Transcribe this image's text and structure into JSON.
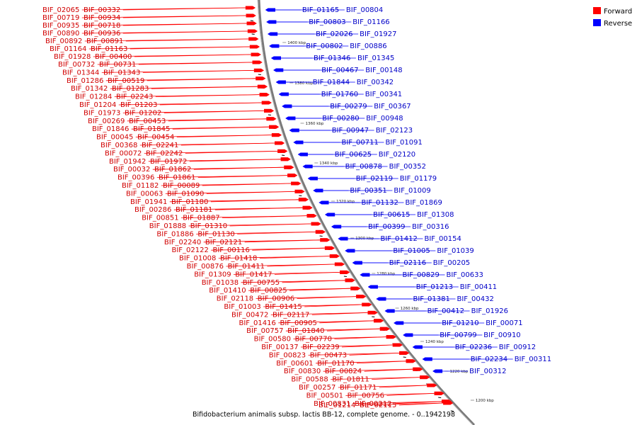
{
  "legend": [
    {
      "label": "Forward",
      "color": "#ff0000"
    },
    {
      "label": "Reverse",
      "color": "#0000ff"
    }
  ],
  "caption": "Bifidobacterium animalis subsp. lactis BB-12, complete genome. - 0..1942198",
  "scale_labels": [
    "1400 kbp",
    "1380 kbp",
    "1360 kbp",
    "1340 kbp",
    "1320 kbp",
    "1300 kbp",
    "1280 kbp",
    "1260 kbp",
    "1240 kbp",
    "1220 kbp",
    "1200 kbp"
  ],
  "forward_genes": [
    "BIF_02065",
    "BIF_00332",
    "BIF_00719",
    "BIF_00934",
    "BIF_00935",
    "BIF_00718",
    "BIF_00890",
    "BIF_00936",
    "BIF_00892",
    "BIF_00891",
    "BIF_01164",
    "BIF_01163",
    "BIF_01928",
    "BIF_00400",
    "BIF_00732",
    "BIF_00731",
    "BIF_01344",
    "BIF_01343",
    "BIF_01286",
    "BIF_00519",
    "BIF_01342",
    "BIF_01283",
    "BIF_01284",
    "BIF_02243",
    "BIF_01204",
    "BIF_01203",
    "BIF_01973",
    "BIF_01202",
    "BIF_00269",
    "BIF_00453",
    "BIF_01846",
    "BIF_01845",
    "BIF_00045",
    "BIF_00454",
    "BIF_00368",
    "BIF_02241",
    "BIF_00072",
    "BIF_02242",
    "BIF_01942",
    "BIF_01972",
    "BIF_00032",
    "BIF_01862",
    "BIF_00396",
    "BIF_01861",
    "BIF_01182",
    "BIF_00089",
    "BIF_00063",
    "BIF_01090",
    "BIF_01941",
    "BIF_01180",
    "BIF_00286",
    "BIF_01181",
    "BIF_00851",
    "BIF_01887",
    "BIF_01888",
    "BIF_01310",
    "BIF_01886",
    "BIF_01130",
    "BIF_02240",
    "BIF_02121",
    "BIF_02122",
    "BIF_00116",
    "BIF_01008",
    "BIF_01418",
    "BIF_00876",
    "BIF_01411",
    "BIF_01309",
    "BIF_01417",
    "BIF_01038",
    "BIF_00755",
    "BIF_01410",
    "BIF_00825",
    "BIF_02118",
    "BIF_00906",
    "BIF_01003",
    "BIF_01415",
    "BIF_00472",
    "BIF_02117",
    "BIF_01416",
    "BIF_00905",
    "BIF_00757",
    "BIF_01840",
    "BIF_00580",
    "BIF_00770",
    "BIF_00137",
    "BIF_02239",
    "BIF_00823",
    "BIF_00473",
    "BIF_00601",
    "BIF_01170",
    "BIF_00830",
    "BIF_00824",
    "BIF_00588",
    "BIF_01811",
    "BIF_00257",
    "BIF_01171",
    "BIF_00501",
    "BIF_00756",
    "BIF_00831",
    "BIF_00212",
    "BIF_01214",
    "BIF_02115"
  ],
  "reverse_genes": [
    "BIF_01165",
    "BIF_00804",
    "BIF_00803",
    "BIF_01166",
    "BIF_02026",
    "BIF_01927",
    "BIF_00802",
    "BIF_00886",
    "BIF_01346",
    "BIF_01345",
    "BIF_00467",
    "BIF_00148",
    "BIF_01844",
    "BIF_00342",
    "BIF_01760",
    "BIF_00341",
    "BIF_00279",
    "BIF_00367",
    "BIF_00280",
    "BIF_00948",
    "BIF_00947",
    "BIF_02123",
    "BIF_00711",
    "BIF_01091",
    "BIF_00625",
    "BIF_02120",
    "BIF_00878",
    "BIF_00352",
    "BIF_02119",
    "BIF_01179",
    "BIF_00351",
    "BIF_01009",
    "BIF_01132",
    "BIF_01869",
    "BIF_00615",
    "BIF_01308",
    "BIF_00399",
    "BIF_00316",
    "BIF_01412",
    "BIF_00154",
    "BIF_01005",
    "BIF_01039",
    "BIF_02116",
    "BIF_00205",
    "BIF_00829",
    "BIF_00633",
    "BIF_01213",
    "BIF_00411",
    "BIF_01381",
    "BIF_00432",
    "BIF_00412",
    "BIF_01926",
    "BIF_01210",
    "BIF_00071",
    "BIF_00799",
    "BIF_00910",
    "BIF_02236",
    "BIF_00912",
    "BIF_02234",
    "BIF_00311",
    "BIF_00312"
  ]
}
